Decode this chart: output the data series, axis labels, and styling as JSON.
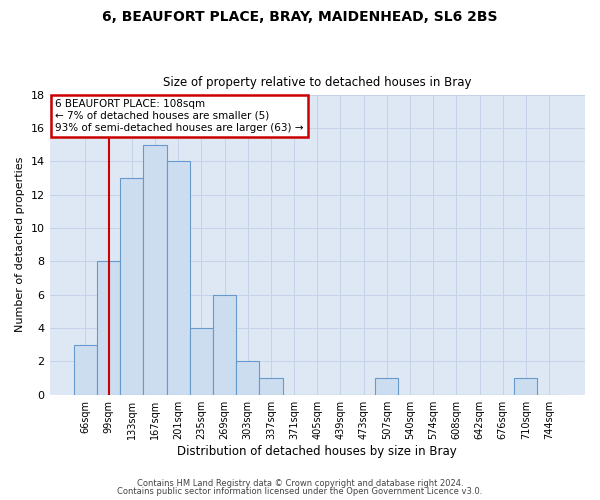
{
  "title1": "6, BEAUFORT PLACE, BRAY, MAIDENHEAD, SL6 2BS",
  "title2": "Size of property relative to detached houses in Bray",
  "xlabel": "Distribution of detached houses by size in Bray",
  "ylabel": "Number of detached properties",
  "categories": [
    "66sqm",
    "99sqm",
    "133sqm",
    "167sqm",
    "201sqm",
    "235sqm",
    "269sqm",
    "303sqm",
    "337sqm",
    "371sqm",
    "405sqm",
    "439sqm",
    "473sqm",
    "507sqm",
    "540sqm",
    "574sqm",
    "608sqm",
    "642sqm",
    "676sqm",
    "710sqm",
    "744sqm"
  ],
  "values": [
    3,
    8,
    13,
    15,
    14,
    4,
    6,
    2,
    1,
    0,
    0,
    0,
    0,
    1,
    0,
    0,
    0,
    0,
    0,
    1,
    0
  ],
  "bar_color": "#ccddf0",
  "bar_edge_color": "#6699cc",
  "bg_color": "#dde8f4",
  "fig_bg": "#ffffff",
  "grid_color": "#c5d3e8",
  "red_line_x": 1.0,
  "annotation_line1": "6 BEAUFORT PLACE: 108sqm",
  "annotation_line2": "← 7% of detached houses are smaller (5)",
  "annotation_line3": "93% of semi-detached houses are larger (63) →",
  "annotation_box_color": "#ffffff",
  "annotation_box_edge": "#cc0000",
  "footer1": "Contains HM Land Registry data © Crown copyright and database right 2024.",
  "footer2": "Contains public sector information licensed under the Open Government Licence v3.0.",
  "ylim": [
    0,
    18
  ],
  "yticks": [
    0,
    2,
    4,
    6,
    8,
    10,
    12,
    14,
    16,
    18
  ]
}
